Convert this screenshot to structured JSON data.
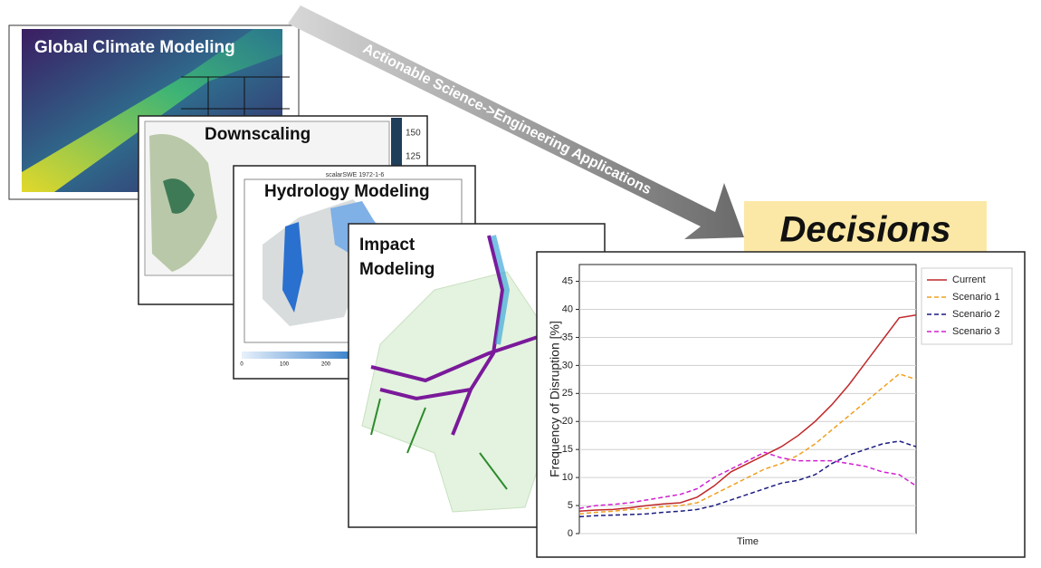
{
  "panels": {
    "global": {
      "title": "Global Climate Modeling"
    },
    "downscaling": {
      "title": "Downscaling",
      "colorbar_ticks": [
        "150",
        "125"
      ]
    },
    "hydrology": {
      "title": "Hydrology Modeling",
      "caption": "scalarSWE 1972-1-6",
      "colorbar_ticks": [
        "0",
        "100",
        "200"
      ]
    },
    "impact": {
      "title_lines": [
        "Impact",
        "Modeling"
      ]
    }
  },
  "arrow": {
    "label": "Actionable Science->Engineering Applications"
  },
  "decisions": {
    "label": "Decisions"
  },
  "chart_data": {
    "type": "line",
    "ylabel": "Frequency of Disruption [%]",
    "xlabel": "Time",
    "x": [
      0,
      1,
      2,
      3,
      4,
      5,
      6,
      7,
      8,
      9,
      10,
      11,
      12,
      13,
      14,
      15,
      16,
      17,
      18,
      19,
      20
    ],
    "xlim": [
      0,
      20
    ],
    "ylim": [
      0,
      48
    ],
    "yticks": [
      0,
      5,
      10,
      15,
      20,
      25,
      30,
      35,
      40,
      45
    ],
    "grid": true,
    "legend": "upper right",
    "series": [
      {
        "name": "Current",
        "color": "#c0282a",
        "dash": false,
        "values": [
          4,
          4.2,
          4.3,
          4.6,
          5,
          5.3,
          5.5,
          6.5,
          8.5,
          11,
          12.5,
          14,
          15.5,
          17.5,
          20,
          23,
          26.5,
          30.5,
          34.5,
          38.5,
          39
        ]
      },
      {
        "name": "Scenario 1",
        "color": "#f0a020",
        "dash": true,
        "values": [
          3.5,
          3.8,
          4,
          4.3,
          4.5,
          4.8,
          5,
          5.5,
          7,
          8.5,
          10,
          11.5,
          12.5,
          14,
          16,
          18.5,
          21,
          23.5,
          26,
          28.5,
          27.5
        ]
      },
      {
        "name": "Scenario 2",
        "color": "#1c1c80",
        "dash": true,
        "values": [
          3,
          3.2,
          3.3,
          3.4,
          3.5,
          3.8,
          4,
          4.3,
          5,
          6,
          7,
          8,
          9,
          9.5,
          10.5,
          12.5,
          14,
          15,
          16,
          16.5,
          15.5
        ]
      },
      {
        "name": "Scenario 3",
        "color": "#d020d0",
        "dash": true,
        "values": [
          4.5,
          5,
          5.2,
          5.5,
          6,
          6.5,
          7,
          8,
          10,
          11.5,
          13,
          14.5,
          13.5,
          13,
          13,
          13,
          12.5,
          12,
          11,
          10.5,
          8.5
        ]
      }
    ]
  }
}
